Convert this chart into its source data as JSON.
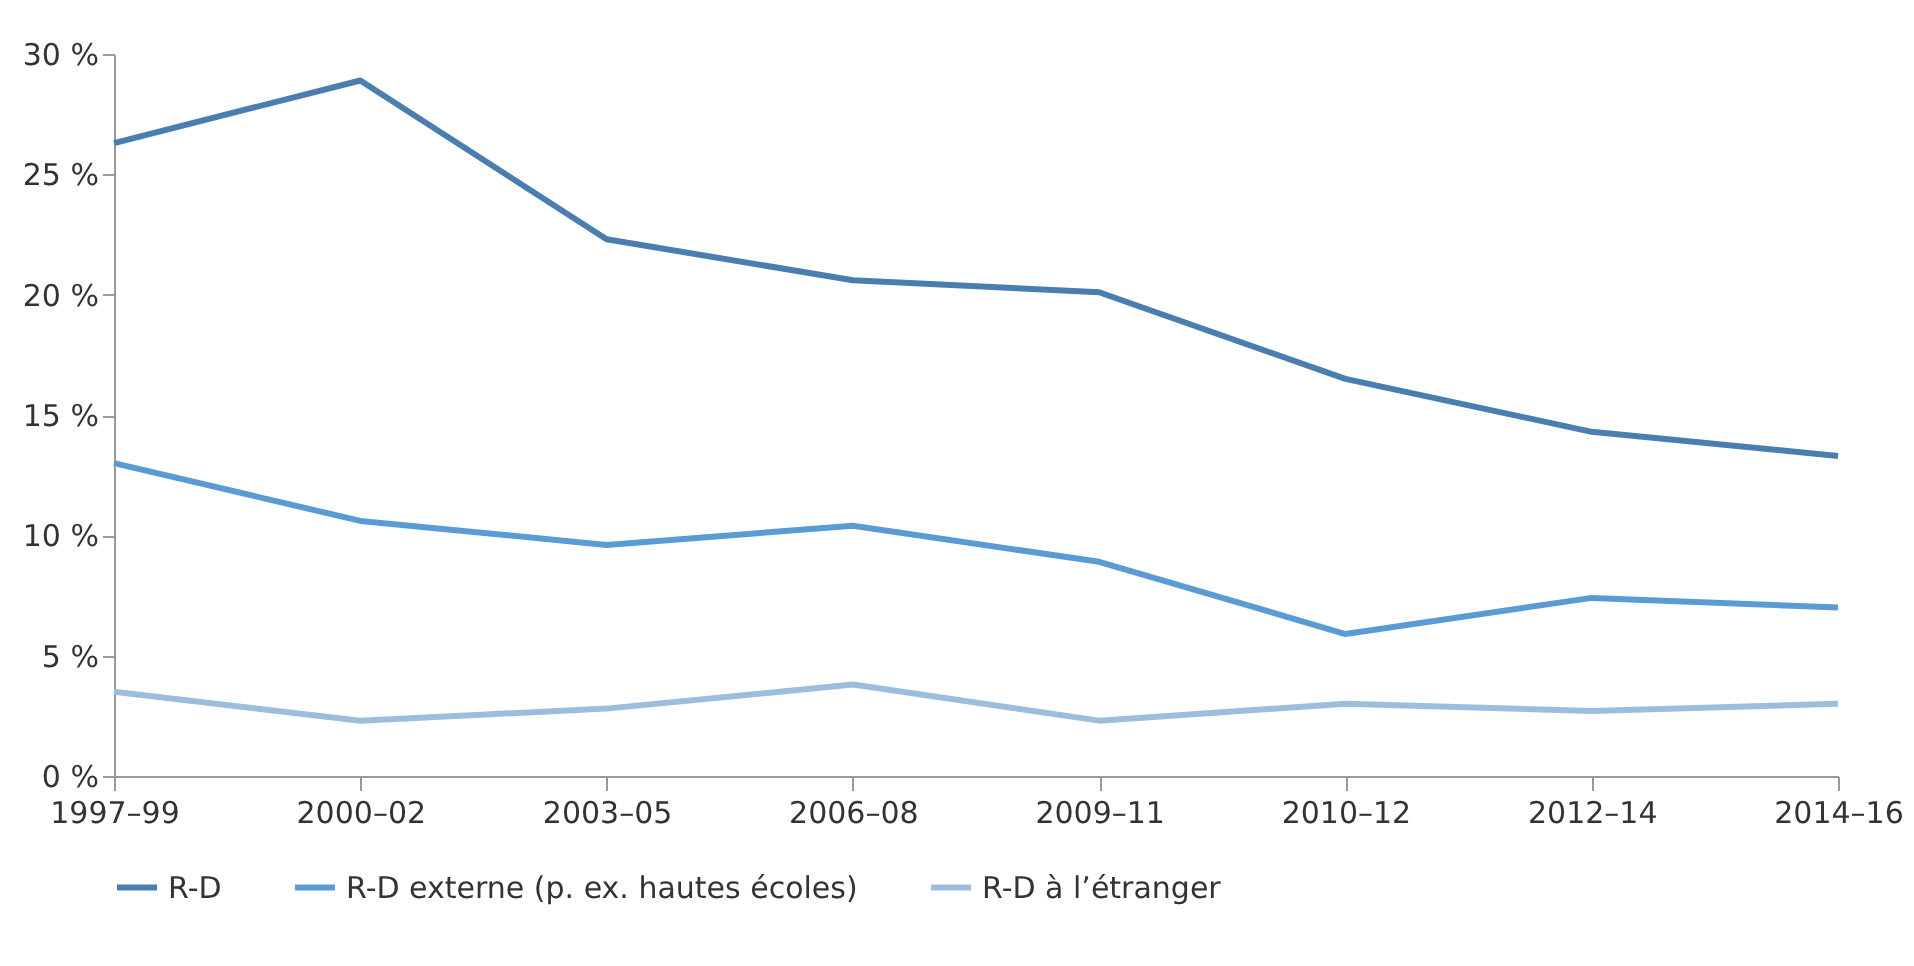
{
  "chart_data": {
    "type": "line",
    "categories": [
      "1997–99",
      "2000–02",
      "2003–05",
      "2006–08",
      "2009–11",
      "2010–12",
      "2012–14",
      "2014–16"
    ],
    "series": [
      {
        "name": "R-D",
        "color": "#4a7eb0",
        "values": [
          26.3,
          28.9,
          22.3,
          20.6,
          20.1,
          16.5,
          14.3,
          13.3
        ]
      },
      {
        "name": "R-D externe (p. ex. hautes écoles)",
        "color": "#5b9bd5",
        "values": [
          13.0,
          10.6,
          9.6,
          10.4,
          8.9,
          5.9,
          7.4,
          7.0
        ]
      },
      {
        "name": "R-D à l’étranger",
        "color": "#9dbde0",
        "values": [
          3.5,
          2.3,
          2.8,
          3.8,
          2.3,
          3.0,
          2.7,
          3.0
        ]
      }
    ],
    "ylim": [
      0,
      30
    ],
    "yticks": [
      {
        "value": 0,
        "label": "0 %"
      },
      {
        "value": 5,
        "label": "5 %"
      },
      {
        "value": 10,
        "label": "10 %"
      },
      {
        "value": 15,
        "label": "15 %"
      },
      {
        "value": 20,
        "label": "20 %"
      },
      {
        "value": 25,
        "label": "25 %"
      },
      {
        "value": 30,
        "label": "30 %"
      }
    ],
    "grid": false,
    "legend": "bottom",
    "marker": "none",
    "line_style": "solid"
  }
}
